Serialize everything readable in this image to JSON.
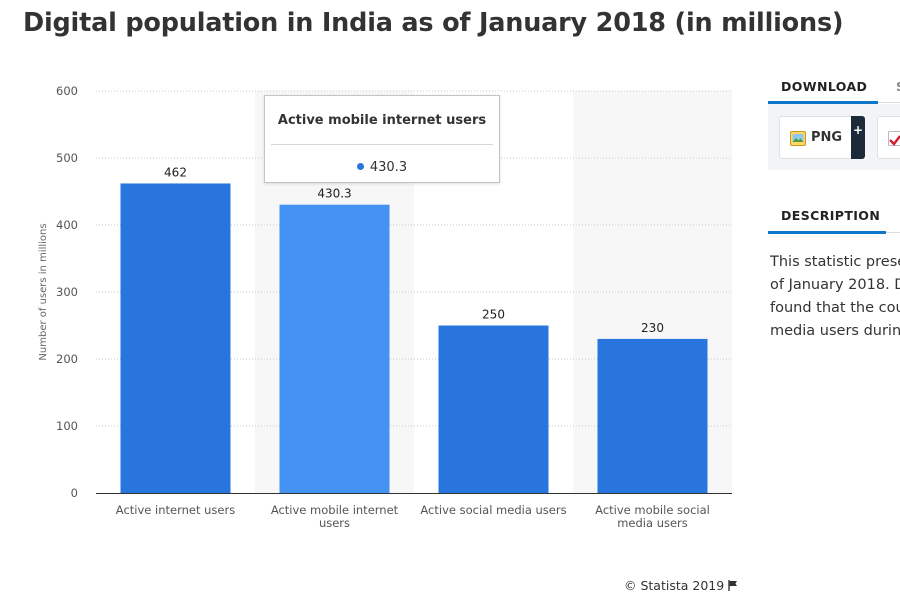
{
  "title": "Digital population in India as of January 2018 (in millions)",
  "chart_data": {
    "type": "bar",
    "title": "Digital population in India as of January 2018 (in millions)",
    "categories": [
      [
        "Active internet users"
      ],
      [
        "Active mobile internet",
        "users"
      ],
      [
        "Active social media users"
      ],
      [
        "Active mobile social",
        "media users"
      ]
    ],
    "values": [
      462,
      430.3,
      250,
      230
    ],
    "value_labels": [
      "462",
      "430.3",
      "250",
      "230"
    ],
    "ylabel": "Number of users in millions",
    "xlabel": "",
    "ylim": [
      0,
      600
    ],
    "yticks": [
      0,
      100,
      200,
      300,
      400,
      500,
      600
    ],
    "grid": true,
    "highlighted_index": 1
  },
  "tooltip": {
    "title": "Active mobile internet users",
    "value": "430.3"
  },
  "colors": {
    "bar": "#2876dd",
    "bar_highlight": "#4492f2",
    "band": "#f7f7f7",
    "grid": "#c8c8c8",
    "axis": "#333333"
  },
  "copyright": "© Statista 2019",
  "sidebar": {
    "download_tab": "DOWNLOAD",
    "share_tab": "S",
    "png_label": "PNG",
    "plus_label": "+",
    "description_tab": "DESCRIPTION",
    "description_lines": [
      "This statistic prese",
      "of January 2018. D",
      "found that the cou",
      "media users durin"
    ]
  }
}
